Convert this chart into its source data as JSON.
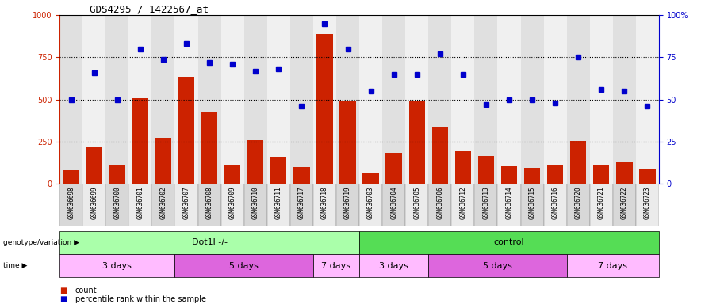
{
  "title": "GDS4295 / 1422567_at",
  "samples": [
    "GSM636698",
    "GSM636699",
    "GSM636700",
    "GSM636701",
    "GSM636702",
    "GSM636707",
    "GSM636708",
    "GSM636709",
    "GSM636710",
    "GSM636711",
    "GSM636717",
    "GSM636718",
    "GSM636719",
    "GSM636703",
    "GSM636704",
    "GSM636705",
    "GSM636706",
    "GSM636712",
    "GSM636713",
    "GSM636714",
    "GSM636715",
    "GSM636716",
    "GSM636720",
    "GSM636721",
    "GSM636722",
    "GSM636723"
  ],
  "counts": [
    80,
    215,
    110,
    510,
    275,
    635,
    430,
    110,
    260,
    160,
    100,
    890,
    490,
    65,
    185,
    490,
    340,
    195,
    165,
    105,
    95,
    115,
    255,
    115,
    130,
    90
  ],
  "percentiles": [
    50,
    66,
    50,
    80,
    74,
    83,
    72,
    71,
    67,
    68,
    46,
    95,
    80,
    55,
    65,
    65,
    77,
    65,
    47,
    50,
    50,
    48,
    75,
    56,
    55,
    46
  ],
  "bar_color": "#cc2200",
  "dot_color": "#0000cc",
  "ylim_left": [
    0,
    1000
  ],
  "ylim_right": [
    0,
    100
  ],
  "yticks_left": [
    0,
    250,
    500,
    750,
    1000
  ],
  "yticks_right": [
    0,
    25,
    50,
    75,
    100
  ],
  "geno_groups": [
    {
      "label": "Dot1l -/-",
      "start": 0,
      "end": 12,
      "color": "#aaffaa"
    },
    {
      "label": "control",
      "start": 13,
      "end": 25,
      "color": "#55dd55"
    }
  ],
  "time_groups": [
    {
      "label": "3 days",
      "start": 0,
      "end": 4,
      "color": "#ffbbff"
    },
    {
      "label": "5 days",
      "start": 5,
      "end": 10,
      "color": "#dd66dd"
    },
    {
      "label": "7 days",
      "start": 11,
      "end": 12,
      "color": "#ffbbff"
    },
    {
      "label": "3 days",
      "start": 13,
      "end": 15,
      "color": "#ffbbff"
    },
    {
      "label": "5 days",
      "start": 16,
      "end": 21,
      "color": "#dd66dd"
    },
    {
      "label": "7 days",
      "start": 22,
      "end": 25,
      "color": "#ffbbff"
    }
  ],
  "legend_bar_label": "count",
  "legend_dot_label": "percentile rank within the sample",
  "genotype_label": "genotype/variation",
  "time_label": "time"
}
